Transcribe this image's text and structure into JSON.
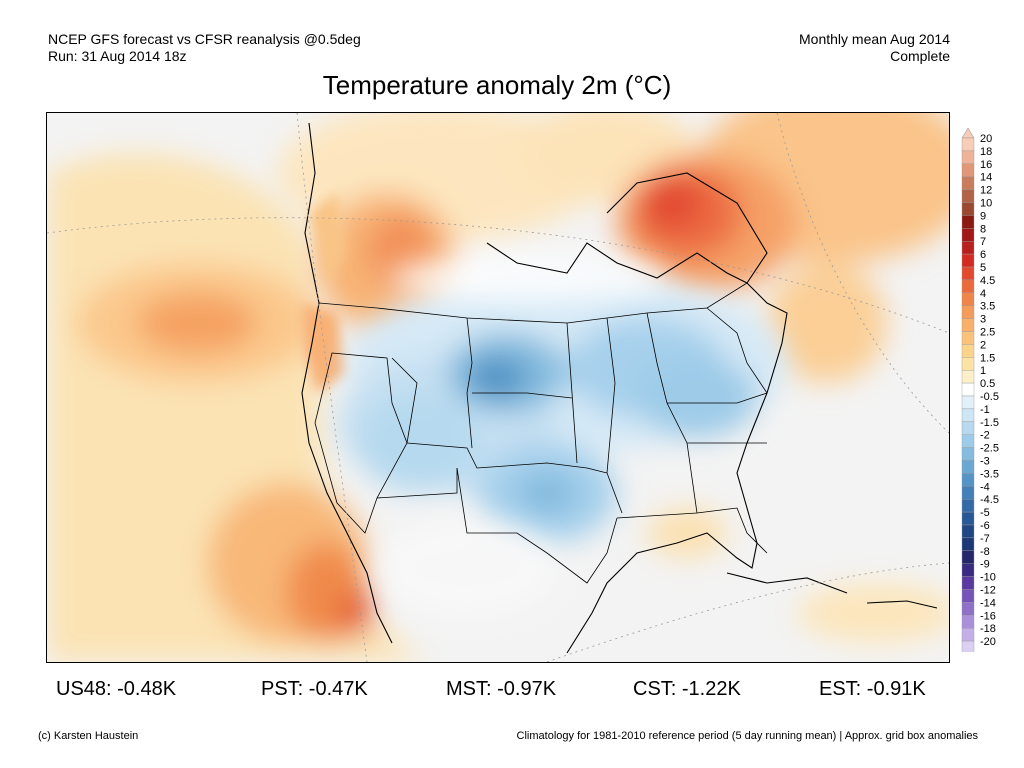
{
  "header": {
    "left_line1": "NCEP GFS forecast vs CFSR reanalysis @0.5deg",
    "left_line2": "Run: 31 Aug 2014 18z",
    "right_line1": "Monthly mean Aug 2014",
    "right_line2": "Complete"
  },
  "title": "Temperature anomaly 2m (°C)",
  "colorbar": {
    "labels": [
      "20",
      "18",
      "16",
      "14",
      "12",
      "10",
      "9",
      "8",
      "7",
      "6",
      "5",
      "4.5",
      "4",
      "3.5",
      "3",
      "2.5",
      "2",
      "1.5",
      "1",
      "0.5",
      "-0.5",
      "-1",
      "-1.5",
      "-2",
      "-2.5",
      "-3",
      "-3.5",
      "-4",
      "-4.5",
      "-5",
      "-6",
      "-7",
      "-8",
      "-9",
      "-10",
      "-12",
      "-14",
      "-16",
      "-18",
      "-20"
    ],
    "colors": [
      "#f7cdb8",
      "#eeb398",
      "#e09878",
      "#c97c5c",
      "#b26246",
      "#9a4a33",
      "#8a1a12",
      "#a01818",
      "#b82020",
      "#d42a22",
      "#e24a30",
      "#ea6a3c",
      "#f0854a",
      "#f59c5a",
      "#f8b06a",
      "#fac27a",
      "#fbd48c",
      "#fce2a4",
      "#fdf0c8",
      "#ffffff",
      "#e2f0fa",
      "#cde5f5",
      "#b6d9ef",
      "#9dcbe8",
      "#84bbde",
      "#6aa8d3",
      "#5594c6",
      "#437fb8",
      "#346aa8",
      "#285896",
      "#204684",
      "#1c3676",
      "#24286a",
      "#3a2a82",
      "#5a3aa0",
      "#7454b8",
      "#8e70c8",
      "#aa90da",
      "#c4b0e8",
      "#dcd0f2"
    ]
  },
  "stats": [
    {
      "label": "US48: -0.48K"
    },
    {
      "label": "PST: -0.47K"
    },
    {
      "label": "MST: -0.97K"
    },
    {
      "label": "CST: -1.22K"
    },
    {
      "label": "EST: -0.91K"
    }
  ],
  "footer": {
    "left": "(c) Karsten Haustein",
    "right": "Climatology for 1981-2010 reference period (5 day running mean) | Approx. grid box anomalies"
  }
}
